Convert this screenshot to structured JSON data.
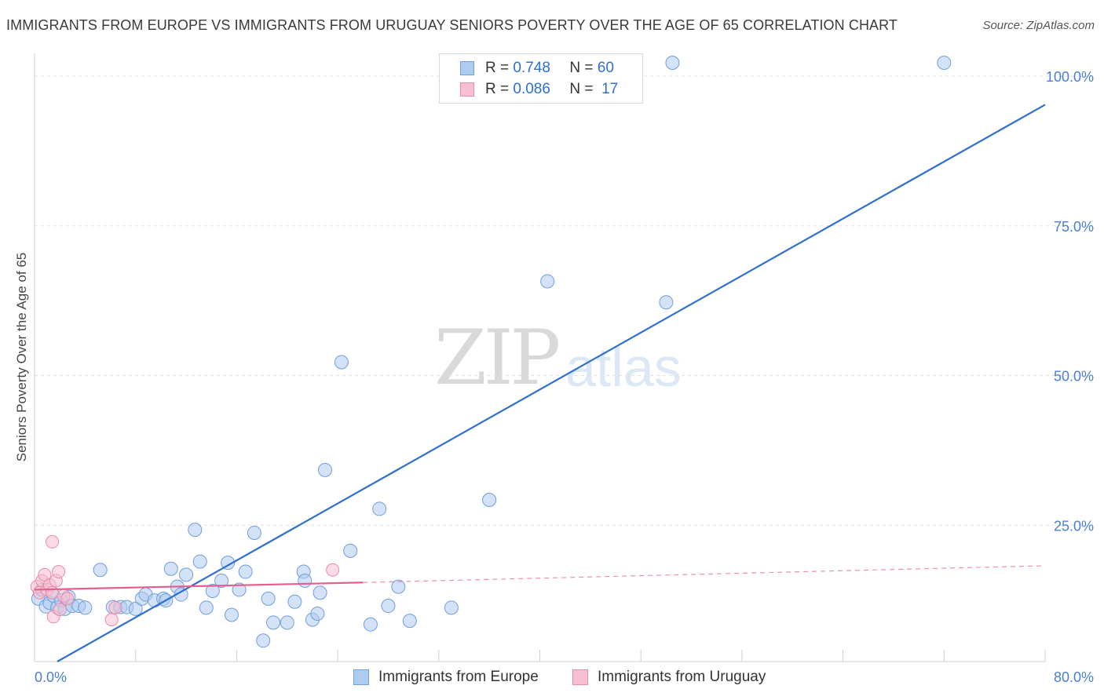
{
  "title": "IMMIGRANTS FROM EUROPE VS IMMIGRANTS FROM URUGUAY SENIORS POVERTY OVER THE AGE OF 65 CORRELATION CHART",
  "source": "Source: ZipAtlas.com",
  "watermark": {
    "zip": "ZIP",
    "atlas": "atlas"
  },
  "stats": {
    "row1": {
      "r_label": "R =",
      "r_value": "0.748",
      "n_label": "N =",
      "n_value": "60"
    },
    "row2": {
      "r_label": "R =",
      "r_value": "0.086",
      "n_label": "N =",
      "n_value": "17"
    }
  },
  "legend": {
    "europe": "Immigrants from Europe",
    "uruguay": "Immigrants from Uruguay"
  },
  "colors": {
    "europe_fill": "#aecbf0",
    "europe_stroke": "#6f9fdc",
    "europe_line": "#2f6fd0",
    "uruguay_fill": "#f7bfd1",
    "uruguay_stroke": "#e88aa9",
    "uruguay_line": "#e45f8c",
    "grid": "#e0e0e0",
    "tick_text": "#4a7fcf"
  },
  "chart_data": {
    "type": "scatter",
    "title": "IMMIGRANTS FROM EUROPE VS IMMIGRANTS FROM URUGUAY SENIORS POVERTY OVER THE AGE OF 65 CORRELATION CHART",
    "xlabel": "",
    "ylabel": "Seniors Poverty Over the Age of 65",
    "xlim": [
      0,
      80
    ],
    "ylim": [
      0,
      100
    ],
    "x_tick_labels": [
      "0.0%",
      "80.0%"
    ],
    "y_ticks": [
      25,
      50,
      75,
      100
    ],
    "y_tick_labels": [
      "25.0%",
      "50.0%",
      "75.0%",
      "100.0%"
    ],
    "grid": true,
    "legend_position": "bottom-center",
    "series": [
      {
        "name": "Immigrants from Europe",
        "r": 0.748,
        "n": 60,
        "trend": {
          "x0": 1.8,
          "y0": 0,
          "x1": 80,
          "y1": 93
        },
        "points": [
          [
            0.3,
            10.5
          ],
          [
            0.6,
            12.0
          ],
          [
            0.9,
            9.2
          ],
          [
            1.2,
            9.8
          ],
          [
            1.5,
            11.0
          ],
          [
            1.8,
            9.0
          ],
          [
            2.1,
            10.2
          ],
          [
            2.4,
            8.8
          ],
          [
            2.7,
            10.8
          ],
          [
            3.0,
            9.3
          ],
          [
            3.5,
            9.3
          ],
          [
            4.0,
            9.0
          ],
          [
            5.2,
            15.3
          ],
          [
            6.2,
            9.1
          ],
          [
            6.8,
            9.1
          ],
          [
            7.3,
            9.1
          ],
          [
            8.0,
            8.8
          ],
          [
            8.5,
            10.5
          ],
          [
            8.8,
            11.2
          ],
          [
            9.5,
            10.2
          ],
          [
            10.2,
            10.5
          ],
          [
            10.4,
            10.2
          ],
          [
            10.8,
            15.5
          ],
          [
            11.3,
            12.5
          ],
          [
            11.6,
            11.2
          ],
          [
            12.0,
            14.5
          ],
          [
            12.7,
            22.0
          ],
          [
            13.1,
            16.7
          ],
          [
            13.6,
            9.0
          ],
          [
            14.1,
            11.8
          ],
          [
            14.8,
            13.5
          ],
          [
            15.3,
            16.5
          ],
          [
            15.6,
            7.8
          ],
          [
            16.2,
            12.0
          ],
          [
            16.7,
            15.0
          ],
          [
            17.4,
            21.5
          ],
          [
            18.1,
            3.5
          ],
          [
            18.5,
            10.5
          ],
          [
            18.9,
            6.5
          ],
          [
            20.0,
            6.5
          ],
          [
            20.6,
            10.0
          ],
          [
            21.3,
            15.0
          ],
          [
            21.4,
            13.5
          ],
          [
            22.0,
            7.0
          ],
          [
            22.4,
            8.0
          ],
          [
            22.6,
            11.5
          ],
          [
            23.0,
            32.0
          ],
          [
            24.3,
            50.0
          ],
          [
            25.0,
            18.5
          ],
          [
            26.6,
            6.2
          ],
          [
            27.3,
            25.5
          ],
          [
            28.0,
            9.3
          ],
          [
            28.8,
            12.5
          ],
          [
            29.7,
            6.8
          ],
          [
            33.0,
            9.0
          ],
          [
            36.0,
            27.0
          ],
          [
            40.6,
            63.5
          ],
          [
            50.0,
            60.0
          ],
          [
            50.5,
            100.0
          ],
          [
            72.0,
            100.0
          ]
        ]
      },
      {
        "name": "Immigrants from Uruguay",
        "r": 0.086,
        "n": 17,
        "trend_solid": {
          "x0": 0,
          "y0": 12.0,
          "x1": 26,
          "y1": 13.2
        },
        "trend_dashed": {
          "x0": 26,
          "y0": 13.2,
          "x1": 80,
          "y1": 16.0
        },
        "points": [
          [
            0.2,
            12.5
          ],
          [
            0.4,
            11.5
          ],
          [
            0.6,
            13.5
          ],
          [
            0.8,
            14.5
          ],
          [
            1.0,
            12.0
          ],
          [
            1.2,
            12.8
          ],
          [
            1.4,
            11.5
          ],
          [
            1.5,
            7.5
          ],
          [
            1.4,
            20.0
          ],
          [
            1.7,
            13.5
          ],
          [
            1.9,
            15.0
          ],
          [
            2.0,
            8.7
          ],
          [
            2.3,
            11.0
          ],
          [
            2.6,
            10.5
          ],
          [
            6.1,
            7.0
          ],
          [
            6.4,
            9.0
          ],
          [
            23.6,
            15.3
          ]
        ]
      }
    ]
  }
}
